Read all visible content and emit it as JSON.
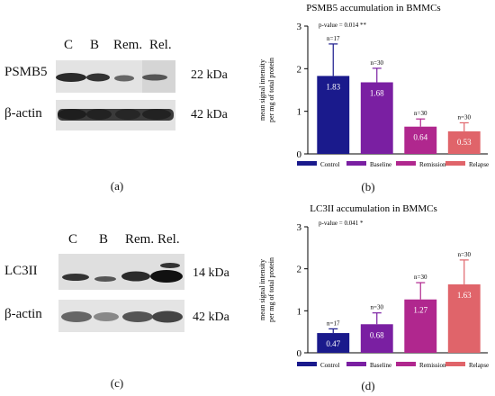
{
  "panel_a": {
    "lanes": [
      "C",
      "B",
      "Rem.",
      "Rel."
    ],
    "row1_label": "PSMB5",
    "row1_kda": "22 kDa",
    "row2_label": "β-actin",
    "row2_kda": "42 kDa",
    "letter": "(a)"
  },
  "panel_c": {
    "lanes": [
      "C",
      "B",
      "Rem.",
      "Rel."
    ],
    "row1_label": "LC3II",
    "row1_kda": "14 kDa",
    "row2_label": "β-actin",
    "row2_kda": "42 kDa",
    "letter": "(c)"
  },
  "panel_b_letter": "(b)",
  "panel_d_letter": "(d)",
  "chart_data": [
    {
      "type": "bar",
      "title": "PSMB5 accumulation in BMMCs",
      "annotation": "p-value = 0.014 **",
      "ylabel_lines": [
        "mean signal intensity",
        "per mg of total protein"
      ],
      "categories": [
        "Control",
        "Baseline",
        "Remission",
        "Relapse"
      ],
      "values": [
        1.83,
        1.68,
        0.64,
        0.53
      ],
      "errors": [
        0.75,
        0.33,
        0.18,
        0.2
      ],
      "n_labels": [
        "n=17",
        "n=30",
        "n=30",
        "n=30"
      ],
      "value_labels": [
        "1.83",
        "1.68",
        "0.64",
        "0.53"
      ],
      "colors": [
        "#1a1a8c",
        "#7a1fa2",
        "#b0278e",
        "#e0646a"
      ],
      "ylim": [
        0,
        3
      ],
      "yticks": [
        "0",
        "1",
        "2",
        "3"
      ],
      "legend_position": "bottom"
    },
    {
      "type": "bar",
      "title": "LC3II accumulation in BMMCs",
      "annotation": "p-value = 0.041 *",
      "ylabel_lines": [
        "mean signal intensity",
        "per mg of total protein"
      ],
      "categories": [
        "Control",
        "Baseline",
        "Remission",
        "Relapse"
      ],
      "values": [
        0.47,
        0.68,
        1.27,
        1.63
      ],
      "errors": [
        0.1,
        0.27,
        0.4,
        0.58
      ],
      "n_labels": [
        "n=17",
        "n=30",
        "n=30",
        "n=30"
      ],
      "value_labels": [
        "0.47",
        "0.68",
        "1.27",
        "1.63"
      ],
      "colors": [
        "#1a1a8c",
        "#7a1fa2",
        "#b0278e",
        "#e0646a"
      ],
      "ylim": [
        0,
        3
      ],
      "yticks": [
        "0",
        "1",
        "2",
        "3"
      ],
      "legend_position": "bottom"
    }
  ]
}
